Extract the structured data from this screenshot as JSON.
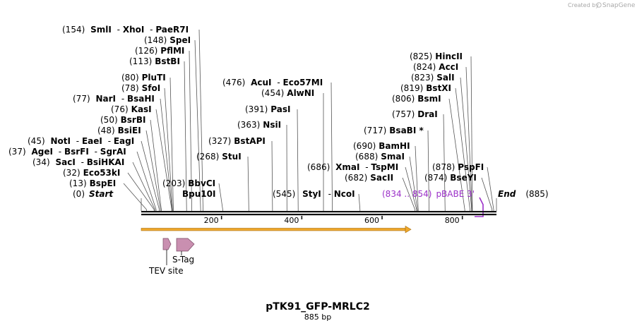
{
  "credit": "Created by",
  "brand": "SnapGene",
  "title": "pTK91_GFP-MRLC2",
  "subtitle": "885 bp",
  "scale_labels": [
    "200",
    "400",
    "600",
    "800"
  ],
  "scale_values": [
    200,
    400,
    600,
    800
  ],
  "sequence_length": 885,
  "sites": [
    {
      "pos": "(154)",
      "names": [
        "SmlI",
        "XhoI",
        "PaeR7I"
      ],
      "bp": 154
    },
    {
      "pos": "(148)",
      "names": [
        "SpeI"
      ],
      "bp": 148
    },
    {
      "pos": "(126)",
      "names": [
        "PflMI"
      ],
      "bp": 126
    },
    {
      "pos": "(113)",
      "names": [
        "BstBI"
      ],
      "bp": 113
    },
    {
      "pos": "(80)",
      "names": [
        "PluTI"
      ],
      "bp": 80
    },
    {
      "pos": "(78)",
      "names": [
        "SfoI"
      ],
      "bp": 78
    },
    {
      "pos": "(77)",
      "names": [
        "NarI",
        "BsaHI"
      ],
      "bp": 77
    },
    {
      "pos": "(76)",
      "names": [
        "KasI"
      ],
      "bp": 76
    },
    {
      "pos": "(50)",
      "names": [
        "BsrBI"
      ],
      "bp": 50
    },
    {
      "pos": "(48)",
      "names": [
        "BsiEI"
      ],
      "bp": 48
    },
    {
      "pos": "(45)",
      "names": [
        "NotI",
        "EaeI",
        "EagI"
      ],
      "bp": 45
    },
    {
      "pos": "(37)",
      "names": [
        "AgeI",
        "BsrFI",
        "SgrAI"
      ],
      "bp": 37
    },
    {
      "pos": "(34)",
      "names": [
        "SacI",
        "BsiHKAI"
      ],
      "bp": 34
    },
    {
      "pos": "(32)",
      "names": [
        "Eco53kI"
      ],
      "bp": 32
    },
    {
      "pos": "(13)",
      "names": [
        "BspEI"
      ],
      "bp": 13
    },
    {
      "pos": "(0)",
      "names": [
        "Start"
      ],
      "bp": 0,
      "italic": true
    },
    {
      "pos": "(203)",
      "names": [
        "BbvCI"
      ],
      "bp": 203
    },
    {
      "pos": "",
      "names": [
        "Bpu10I"
      ],
      "bp": 203
    },
    {
      "pos": "(268)",
      "names": [
        "StuI"
      ],
      "bp": 268
    },
    {
      "pos": "(327)",
      "names": [
        "BstAPI"
      ],
      "bp": 327
    },
    {
      "pos": "(363)",
      "names": [
        "NsiI"
      ],
      "bp": 363
    },
    {
      "pos": "(391)",
      "names": [
        "PasI"
      ],
      "bp": 391
    },
    {
      "pos": "(454)",
      "names": [
        "AlwNI"
      ],
      "bp": 454
    },
    {
      "pos": "(476)",
      "names": [
        "AcuI",
        "Eco57MI"
      ],
      "bp": 476
    },
    {
      "pos": "(545)",
      "names": [
        "StyI",
        "NcoI"
      ],
      "bp": 545
    },
    {
      "pos": "(717)",
      "names": [
        "BsaBI *"
      ],
      "bp": 717
    },
    {
      "pos": "(690)",
      "names": [
        "BamHI"
      ],
      "bp": 690
    },
    {
      "pos": "(688)",
      "names": [
        "SmaI"
      ],
      "bp": 688
    },
    {
      "pos": "(686)",
      "names": [
        "XmaI",
        "TspMI"
      ],
      "bp": 686
    },
    {
      "pos": "(682)",
      "names": [
        "SacII"
      ],
      "bp": 682
    },
    {
      "pos": "(757)",
      "names": [
        "DraI"
      ],
      "bp": 757
    },
    {
      "pos": "(825)",
      "names": [
        "HincII"
      ],
      "bp": 825
    },
    {
      "pos": "(824)",
      "names": [
        "AccI"
      ],
      "bp": 824
    },
    {
      "pos": "(823)",
      "names": [
        "SalI"
      ],
      "bp": 823
    },
    {
      "pos": "(819)",
      "names": [
        "BstXI"
      ],
      "bp": 819
    },
    {
      "pos": "(806)",
      "names": [
        "BsmI"
      ],
      "bp": 806
    },
    {
      "pos": "(878)",
      "names": [
        "PspFI"
      ],
      "bp": 878
    },
    {
      "pos": "(874)",
      "names": [
        "BseYI"
      ],
      "bp": 874
    },
    {
      "pos": "(885)",
      "names": [
        "End"
      ],
      "bp": 885,
      "italic": true
    }
  ],
  "primer": {
    "range": "(834 .. 854)",
    "name": "pBABE 3'",
    "color": "#9b30c8"
  },
  "features": [
    {
      "name": "S-Tag",
      "color": "#c98fb0"
    },
    {
      "name": "TEV site",
      "color": "#c98fb0"
    }
  ],
  "orf_color": "#f0a92c"
}
